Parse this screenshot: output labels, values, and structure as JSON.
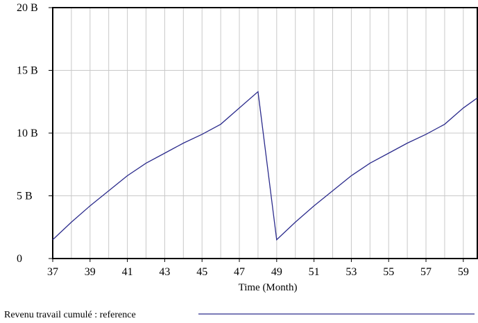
{
  "chart_data": {
    "type": "line",
    "title": "",
    "xlabel": "Time (Month)",
    "ylabel": "",
    "xlim": [
      37,
      59.75
    ],
    "ylim": [
      0,
      20
    ],
    "x_ticks": [
      37,
      39,
      41,
      43,
      45,
      47,
      49,
      51,
      53,
      55,
      57,
      59
    ],
    "x_tick_labels": [
      "37",
      "39",
      "41",
      "43",
      "45",
      "47",
      "49",
      "51",
      "53",
      "55",
      "57",
      "59"
    ],
    "y_ticks": [
      0,
      5,
      10,
      15,
      20
    ],
    "y_tick_labels": [
      "0",
      "5 B",
      "10 B",
      "15 B",
      "20 B"
    ],
    "x_grid_step": 1,
    "grid": true,
    "legend_position": "bottom-left",
    "colors": {
      "series": "#2b2b8c",
      "grid": "#c8c8c8",
      "axis": "#000000"
    },
    "series": [
      {
        "name": "Revenu travail cumulé : reference",
        "x": [
          37,
          38,
          39,
          40,
          41,
          42,
          43,
          44,
          45,
          46,
          47,
          48,
          49,
          50,
          51,
          52,
          53,
          54,
          55,
          56,
          57,
          58,
          59,
          59.75
        ],
        "y": [
          1.5,
          2.9,
          4.2,
          5.4,
          6.6,
          7.6,
          8.4,
          9.2,
          9.9,
          10.7,
          12.0,
          13.3,
          1.5,
          2.9,
          4.2,
          5.4,
          6.6,
          7.6,
          8.4,
          9.2,
          9.9,
          10.7,
          12.0,
          12.8
        ]
      }
    ]
  }
}
